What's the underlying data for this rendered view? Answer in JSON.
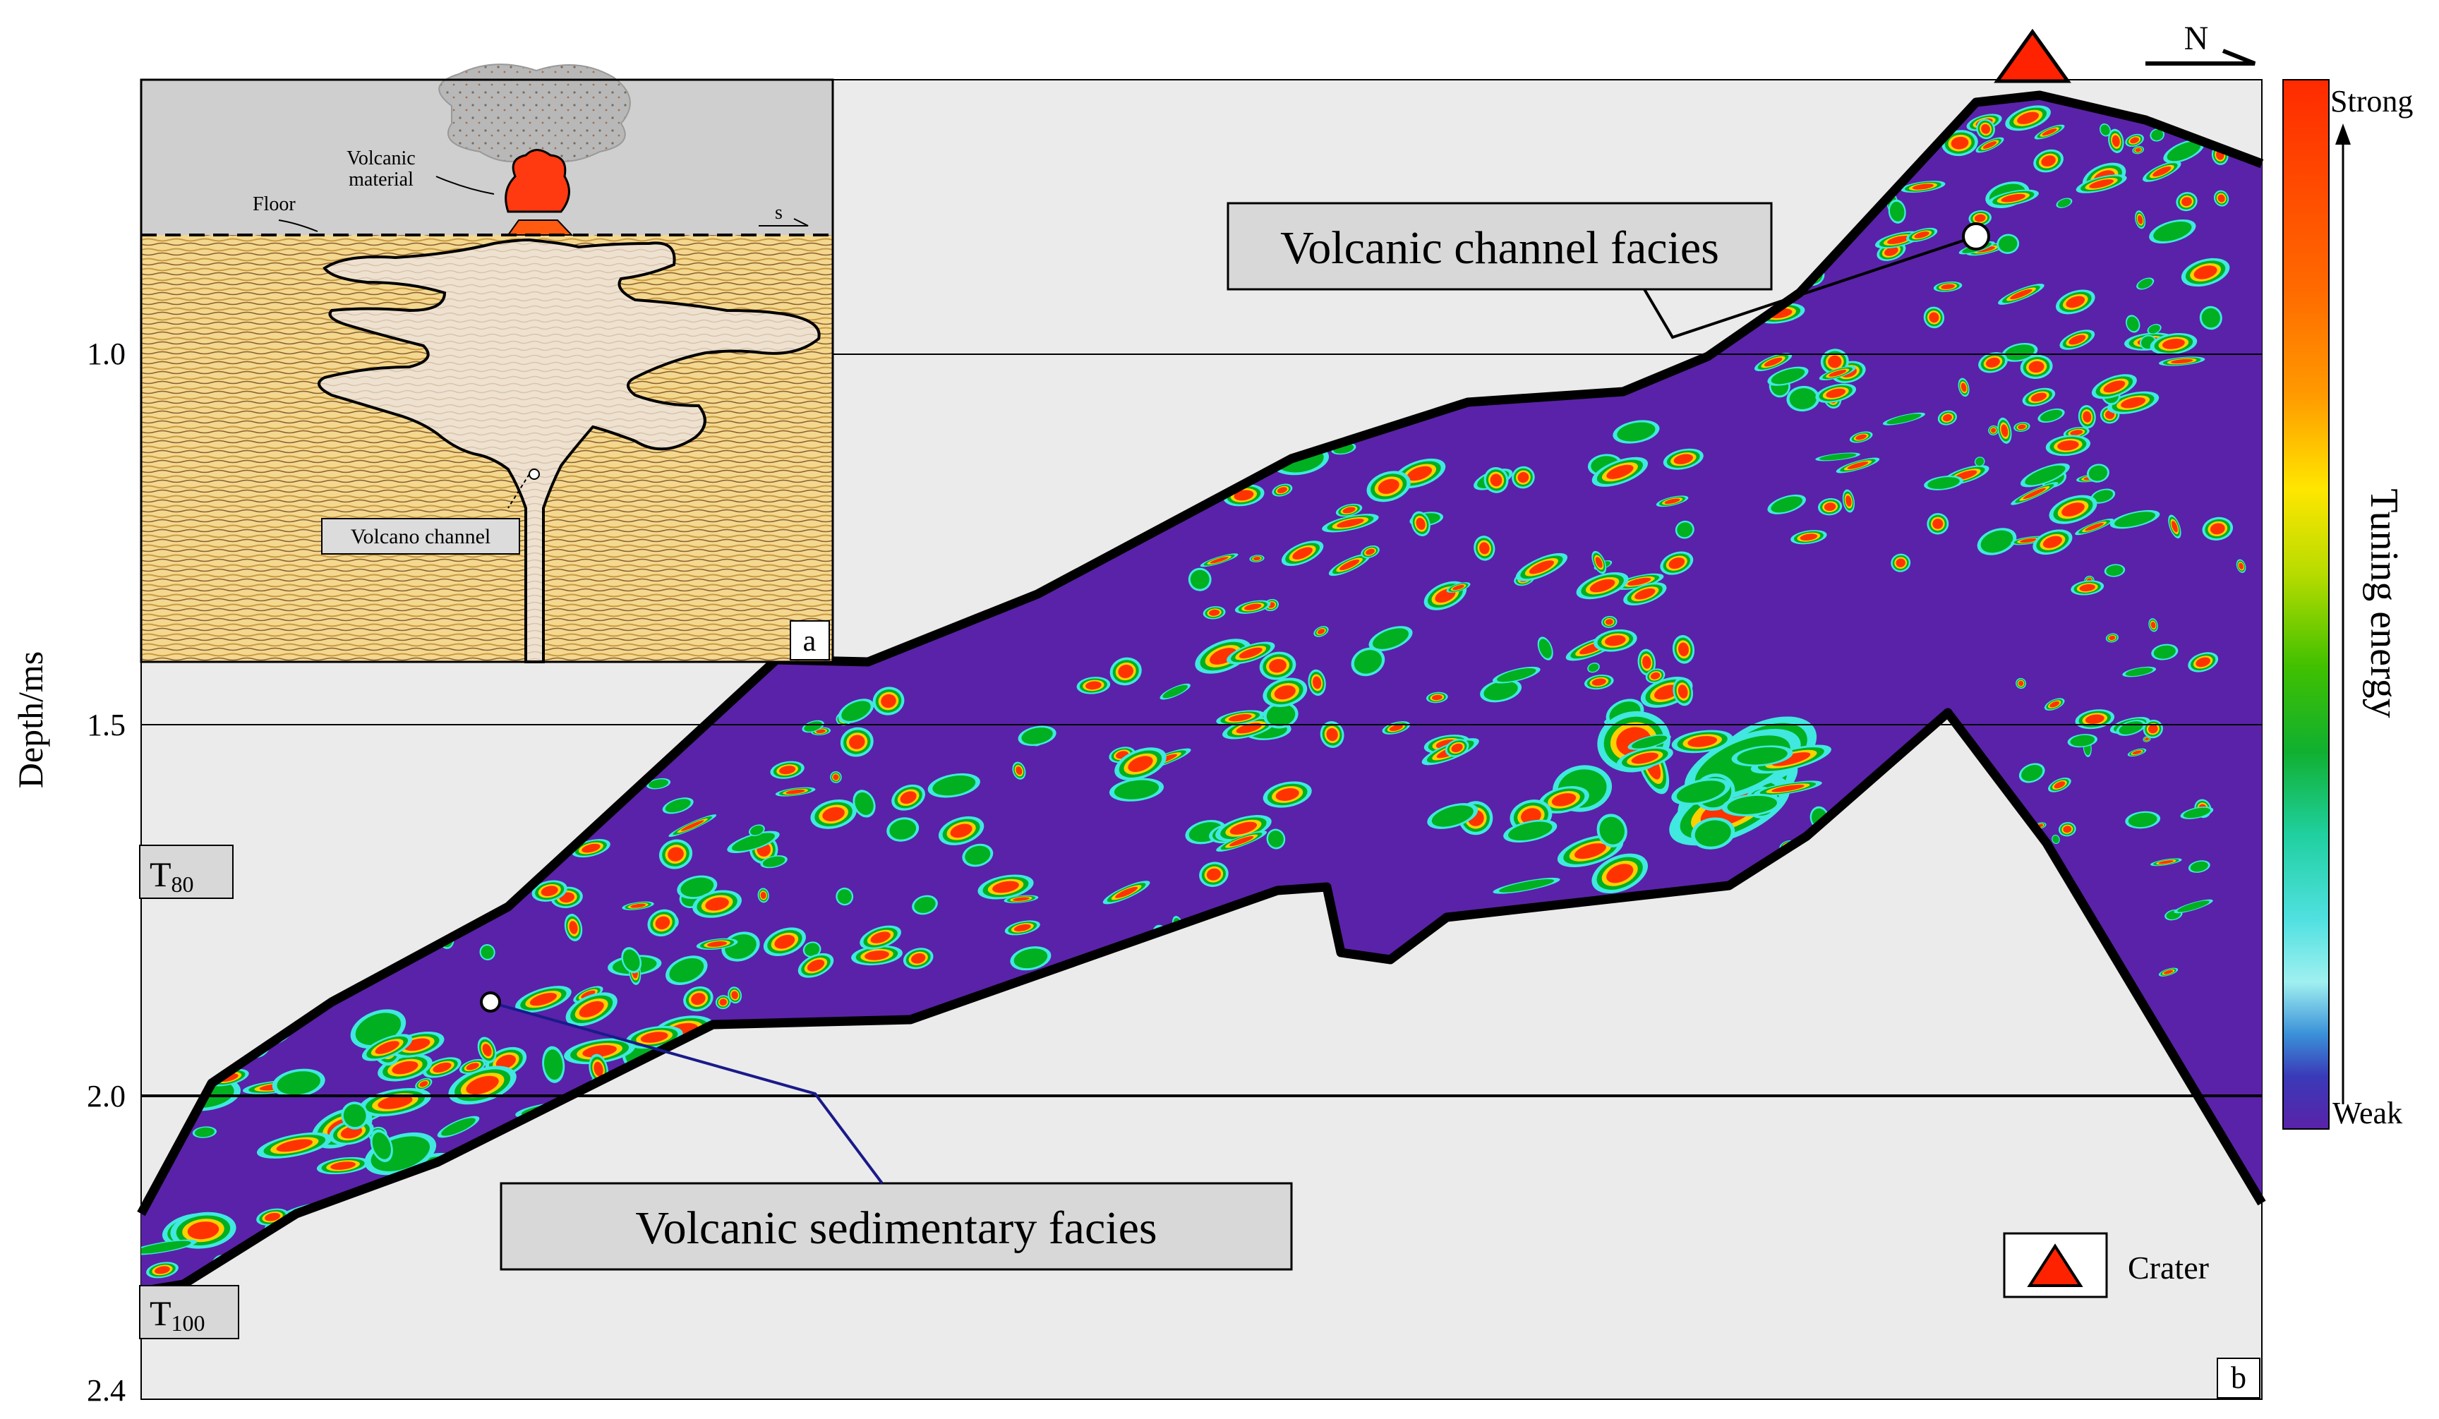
{
  "figure": {
    "y_axis": {
      "title": "Depth/ms",
      "ticks": [
        "1.0",
        "1.5",
        "2.0",
        "2.4"
      ]
    },
    "horizons": {
      "t80": {
        "base": "T",
        "sub": "80"
      },
      "t100": {
        "base": "T",
        "sub": "100"
      }
    },
    "facies_labels": {
      "channel": "Volcanic channel facies",
      "sedimentary": "Volcanic sedimentary facies"
    },
    "panel_letters": {
      "a": "a",
      "b": "b"
    },
    "inset": {
      "volcanic_material": [
        "Volcanic",
        "material"
      ],
      "floor": "Floor",
      "direction": "s",
      "channel": "Volcano channel"
    },
    "north": "N",
    "legend": {
      "crater": "Crater"
    },
    "colorbar": {
      "top": "Strong",
      "bottom": "Weak",
      "title": "Tuning energy",
      "stops": [
        "#ff2a00",
        "#ff5a00",
        "#ff8a00",
        "#ffb000",
        "#ffe600",
        "#c8e000",
        "#6cc800",
        "#10b010",
        "#18c888",
        "#30e0d0",
        "#a8f0f0",
        "#3a8ad0",
        "#3a3ab8",
        "#5a22a8"
      ]
    },
    "colors": {
      "section_fill": "#5a22a8",
      "hot": "#ff3300",
      "warm": "#ffd000",
      "green": "#00b020",
      "cyan": "#40e8e0",
      "background": "#ebebeb",
      "crater": "#ff2200"
    }
  }
}
